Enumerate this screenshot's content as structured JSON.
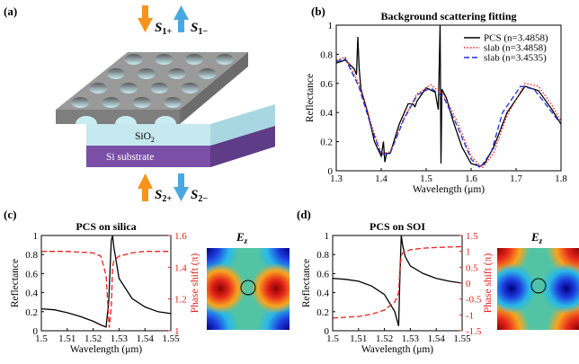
{
  "panels": {
    "a": {
      "label": "(a)"
    },
    "b": {
      "label": "(b)"
    },
    "c": {
      "label": "(c)"
    },
    "d": {
      "label": "(d)"
    }
  },
  "schematic": {
    "s1_in": "S",
    "s1_in_sub": "1+",
    "s1_out": "S",
    "s1_out_sub": "1−",
    "s2_in": "S",
    "s2_in_sub": "2+",
    "s2_out": "S",
    "s2_out_sub": "2−",
    "sio2": "SiO",
    "sio2_sub": "2",
    "substrate": "Si substrate",
    "colors": {
      "in_arrow": "#f7941d",
      "out_arrow": "#4aa8e0",
      "slab": "#8a8a8a",
      "silica": "#bfe6ee",
      "si": "#7b4fa8"
    }
  },
  "field_maps": {
    "c": {
      "label": "E",
      "label_sub": "z"
    },
    "d": {
      "label": "E",
      "label_sub": "z"
    }
  },
  "chart_data": [
    {
      "panel": "b",
      "type": "line",
      "title": "Background scattering fitting",
      "xlabel": "Wavelength (μm)",
      "ylabel": "Reflectance",
      "xlim": [
        1.3,
        1.8
      ],
      "ylim": [
        0,
        1
      ],
      "xticks": [
        "1.3",
        "1.4",
        "1.5",
        "1.6",
        "1.7",
        "1.8"
      ],
      "yticks": [
        "0",
        "0.2",
        "0.4",
        "0.6",
        "0.8",
        "1"
      ],
      "legend_position": "top-right",
      "series": [
        {
          "name": "PCS (n=3.4858)",
          "color": "#000000",
          "style": "solid",
          "x": [
            1.3,
            1.32,
            1.34,
            1.345,
            1.348,
            1.351,
            1.355,
            1.37,
            1.385,
            1.4,
            1.405,
            1.408,
            1.412,
            1.42,
            1.44,
            1.46,
            1.47,
            1.475,
            1.48,
            1.5,
            1.52,
            1.527,
            1.531,
            1.533,
            1.535,
            1.545,
            1.56,
            1.58,
            1.6,
            1.62,
            1.63,
            1.65,
            1.68,
            1.72,
            1.75,
            1.78,
            1.8
          ],
          "y": [
            0.74,
            0.76,
            0.7,
            0.66,
            0.92,
            0.7,
            0.56,
            0.4,
            0.2,
            0.1,
            0.2,
            0.06,
            0.12,
            0.12,
            0.32,
            0.46,
            0.46,
            0.44,
            0.48,
            0.57,
            0.54,
            0.42,
            1.0,
            0.05,
            0.56,
            0.5,
            0.34,
            0.16,
            0.05,
            0.03,
            0.05,
            0.16,
            0.4,
            0.58,
            0.55,
            0.42,
            0.32
          ]
        },
        {
          "name": "slab (n=3.4858)",
          "color": "#e8211b",
          "style": "dotted",
          "x": [
            1.3,
            1.32,
            1.35,
            1.38,
            1.4,
            1.42,
            1.45,
            1.48,
            1.51,
            1.54,
            1.57,
            1.6,
            1.625,
            1.65,
            1.68,
            1.72,
            1.75,
            1.78,
            1.8
          ],
          "y": [
            0.76,
            0.78,
            0.6,
            0.3,
            0.12,
            0.13,
            0.36,
            0.53,
            0.59,
            0.52,
            0.33,
            0.1,
            0.02,
            0.12,
            0.38,
            0.6,
            0.58,
            0.45,
            0.34
          ]
        },
        {
          "name": "slab (n=3.4535)",
          "color": "#1f2fd6",
          "style": "dashed",
          "x": [
            1.3,
            1.32,
            1.35,
            1.38,
            1.4,
            1.42,
            1.45,
            1.48,
            1.51,
            1.54,
            1.57,
            1.6,
            1.62,
            1.645,
            1.67,
            1.71,
            1.74,
            1.77,
            1.8
          ],
          "y": [
            0.75,
            0.77,
            0.58,
            0.28,
            0.11,
            0.12,
            0.35,
            0.52,
            0.57,
            0.5,
            0.3,
            0.08,
            0.02,
            0.13,
            0.4,
            0.58,
            0.56,
            0.44,
            0.32
          ]
        }
      ]
    },
    {
      "panel": "c",
      "type": "line",
      "title": "PCS on silica",
      "xlabel": "Wavelength (μm)",
      "ylabel": "Reflectance",
      "y2label": "Phase shift (π)",
      "xlim": [
        1.5,
        1.55
      ],
      "ylim": [
        0,
        1
      ],
      "y2lim": [
        1.0,
        1.6
      ],
      "xticks": [
        "1.5",
        "1.51",
        "1.52",
        "1.53",
        "1.54",
        "1.55"
      ],
      "yticks": [
        "0",
        "0.2",
        "0.4",
        "0.6",
        "0.8",
        "1"
      ],
      "y2ticks": [
        "1",
        "1.2",
        "1.4",
        "1.6"
      ],
      "series": [
        {
          "name": "Reflectance",
          "color": "#000000",
          "style": "solid",
          "axis": "left",
          "x": [
            1.5,
            1.505,
            1.51,
            1.515,
            1.52,
            1.523,
            1.525,
            1.526,
            1.527,
            1.5275,
            1.528,
            1.53,
            1.535,
            1.54,
            1.545,
            1.55
          ],
          "y": [
            0.23,
            0.22,
            0.19,
            0.15,
            0.1,
            0.06,
            0.04,
            0.3,
            0.95,
            1.0,
            0.88,
            0.55,
            0.34,
            0.25,
            0.2,
            0.18
          ]
        },
        {
          "name": "Phase shift",
          "color": "#e8211b",
          "style": "dashed",
          "axis": "right",
          "x": [
            1.5,
            1.51,
            1.52,
            1.523,
            1.525,
            1.5262,
            1.527,
            1.5275,
            1.528,
            1.53,
            1.535,
            1.54,
            1.55
          ],
          "y": [
            1.5,
            1.5,
            1.49,
            1.47,
            1.35,
            1.02,
            1.15,
            1.4,
            1.44,
            1.47,
            1.49,
            1.5,
            1.5
          ]
        }
      ]
    },
    {
      "panel": "d",
      "type": "line",
      "title": "PCS on SOI",
      "xlabel": "Wavelength (μm)",
      "ylabel": "Reflectance",
      "y2label": "Phase shift (π)",
      "xlim": [
        1.5,
        1.55
      ],
      "ylim": [
        0,
        1
      ],
      "y2lim": [
        -1.5,
        1.5
      ],
      "xticks": [
        "1.5",
        "1.51",
        "1.52",
        "1.53",
        "1.54",
        "1.55"
      ],
      "yticks": [
        "0",
        "0.2",
        "0.4",
        "0.6",
        "0.8",
        "1"
      ],
      "y2ticks": [
        "-1.5",
        "-1",
        "-0.5",
        "0",
        "0.5",
        "1",
        "1.5"
      ],
      "series": [
        {
          "name": "Reflectance",
          "color": "#000000",
          "style": "solid",
          "axis": "left",
          "x": [
            1.5,
            1.505,
            1.51,
            1.515,
            1.52,
            1.524,
            1.5255,
            1.526,
            1.5265,
            1.527,
            1.528,
            1.53,
            1.535,
            1.54,
            1.545,
            1.55
          ],
          "y": [
            0.55,
            0.54,
            0.52,
            0.47,
            0.38,
            0.2,
            0.05,
            0.6,
            1.0,
            0.9,
            0.78,
            0.68,
            0.6,
            0.55,
            0.52,
            0.5
          ]
        },
        {
          "name": "Phase shift",
          "color": "#e8211b",
          "style": "dashed",
          "axis": "right",
          "x": [
            1.5,
            1.51,
            1.515,
            1.52,
            1.524,
            1.5255,
            1.526,
            1.5265,
            1.527,
            1.53,
            1.535,
            1.54,
            1.55
          ],
          "y": [
            -1.1,
            -1.05,
            -0.98,
            -0.85,
            -0.6,
            -0.3,
            0.5,
            0.85,
            0.95,
            1.05,
            1.1,
            1.12,
            1.15
          ]
        }
      ]
    }
  ]
}
